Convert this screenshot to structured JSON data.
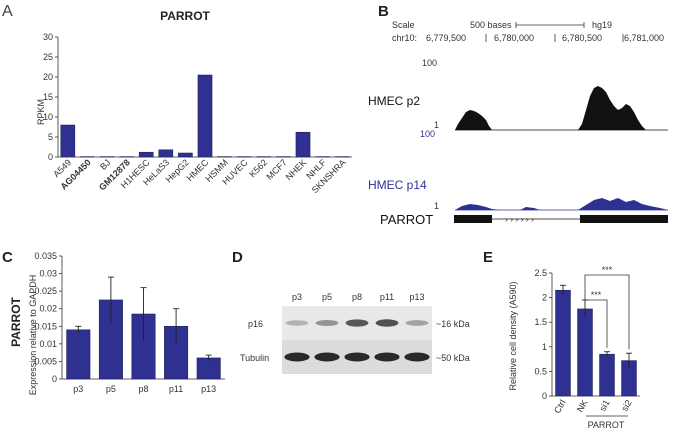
{
  "panels": {
    "a": "A",
    "b": "B",
    "c": "C",
    "d": "D",
    "e": "E"
  },
  "chart_data": [
    {
      "id": "A",
      "type": "bar",
      "title": "PARROT",
      "ylabel": "RPKM",
      "ylim": [
        0,
        30
      ],
      "yticks": [
        0,
        5,
        10,
        15,
        20,
        25,
        30
      ],
      "categories": [
        "A549",
        "AG04450",
        "BJ",
        "GM12878",
        "H1HESC",
        "HeLaS3",
        "HepG2",
        "HMEC",
        "HSMM",
        "HUVEC",
        "K562",
        "MCF7",
        "NHEK",
        "NHLF",
        "SKNSHRA"
      ],
      "bold_categories": [
        "AG04450",
        "GM12878"
      ],
      "values": [
        8,
        0.1,
        0.1,
        0.1,
        1.2,
        1.8,
        1.0,
        20.5,
        0.1,
        0.1,
        0.1,
        0.1,
        6.2,
        0.1,
        0.1
      ]
    },
    {
      "id": "C",
      "type": "bar",
      "title": "PARROT",
      "ylabel": "Expression relative to GAPDH",
      "ylim": [
        0,
        0.035
      ],
      "yticks": [
        "0",
        "0.005",
        "0.01",
        "0.015",
        "0.02",
        "0.025",
        "0.03",
        "0.035"
      ],
      "categories": [
        "p3",
        "p5",
        "p8",
        "p11",
        "p13"
      ],
      "values": [
        0.014,
        0.0225,
        0.0185,
        0.015,
        0.006
      ],
      "errors": [
        0.001,
        0.0065,
        0.0075,
        0.005,
        0.0008
      ]
    },
    {
      "id": "E",
      "type": "bar",
      "ylabel": "Relative cell density (A590)",
      "ylim": [
        0,
        2.5
      ],
      "yticks": [
        "0",
        "0.5",
        "1",
        "1.5",
        "2",
        "2.5"
      ],
      "categories": [
        "Ctrl",
        "NK",
        "si1",
        "si2"
      ],
      "values": [
        2.15,
        1.77,
        0.85,
        0.72
      ],
      "errors": [
        0.1,
        0.18,
        0.05,
        0.15
      ],
      "significance": [
        "***",
        "***"
      ],
      "group_label": "PARROT"
    }
  ],
  "genome": {
    "scale_label": "Scale",
    "scale_value": "500 bases",
    "assembly": "hg19",
    "chrom": "chr10:",
    "positions": [
      "6,779,500",
      "6,780,000",
      "6,780,500",
      "6,781,000"
    ],
    "track1_label": "HMEC p2",
    "track1_max": "100",
    "track1_min": "1",
    "track2_label": "HMEC p14",
    "track2_max": "100",
    "track2_min": "1",
    "gene_label": "PARROT"
  },
  "blot": {
    "lanes": [
      "p3",
      "p5",
      "p8",
      "p11",
      "p13"
    ],
    "row1_label": "p16",
    "row1_size": "~16 kDa",
    "row2_label": "Tubulin",
    "row2_size": "~50 kDa",
    "p16_levels": [
      0.15,
      0.35,
      0.75,
      0.8,
      0.25
    ]
  }
}
